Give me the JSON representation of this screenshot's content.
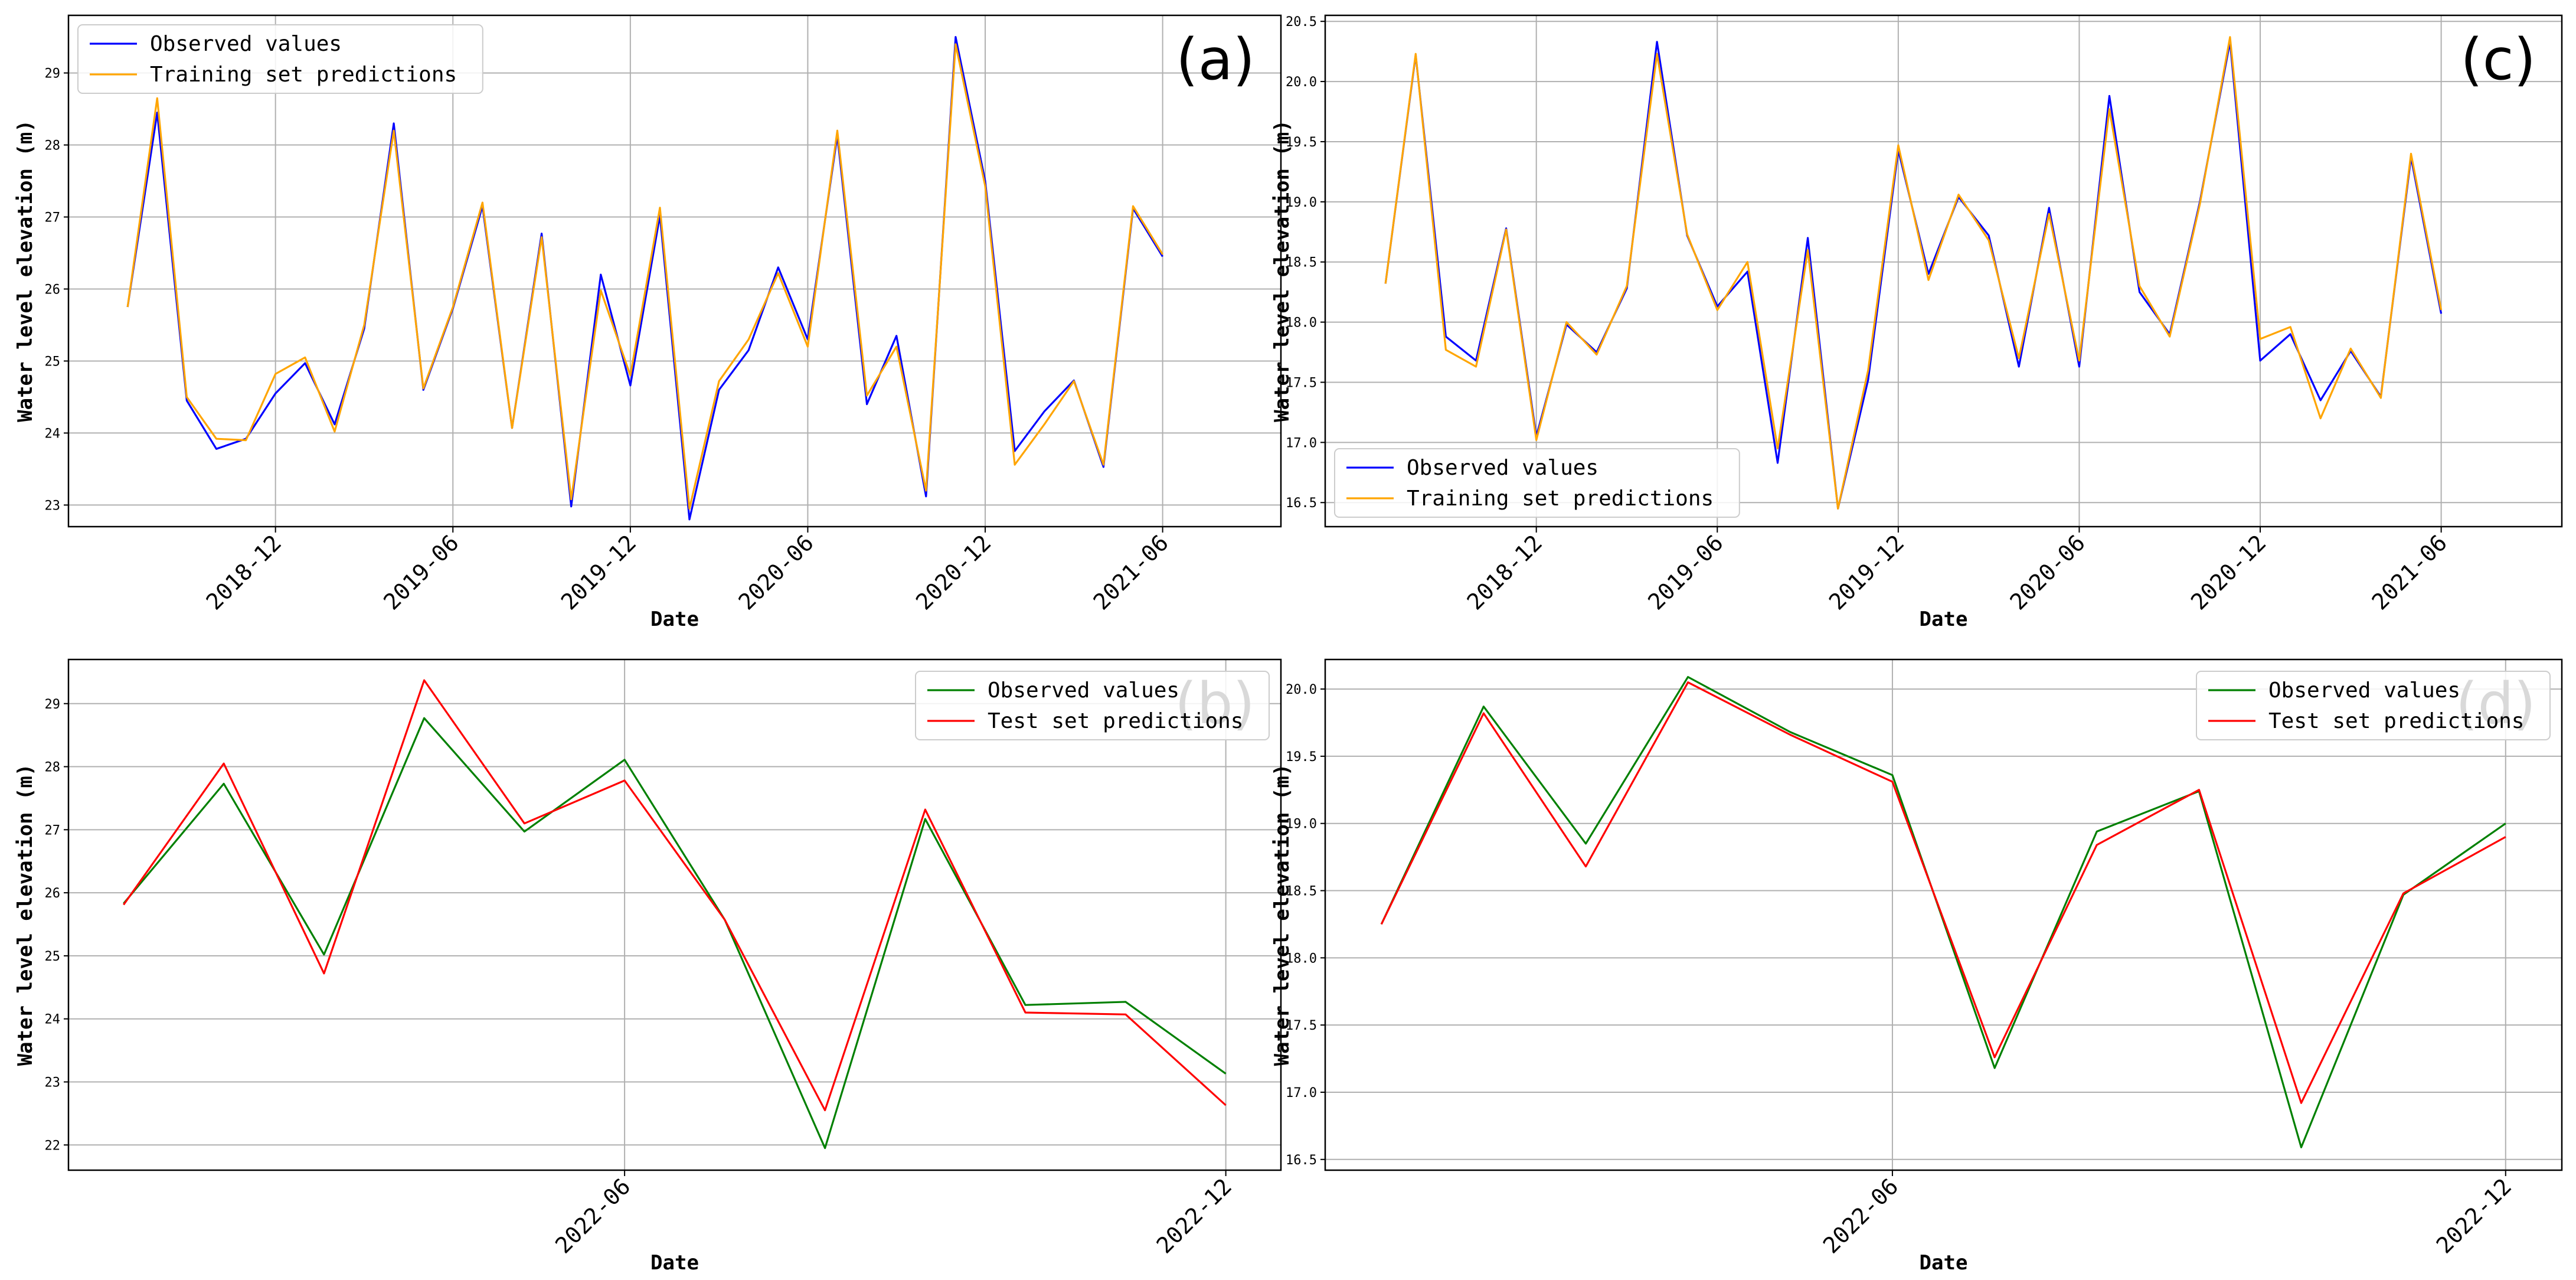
{
  "chart_data": [
    {
      "id": "a",
      "type": "line",
      "panel_label": "(a)",
      "xlabel": "Date",
      "ylabel": "Water level elevation (m)",
      "ylim": [
        22.7,
        29.8
      ],
      "yticks": [
        23,
        24,
        25,
        26,
        27,
        28,
        29
      ],
      "ytick_labels": [
        "23",
        "24",
        "25",
        "26",
        "27",
        "28",
        "29"
      ],
      "xlim": [
        -2,
        39
      ],
      "xticks": [
        5,
        11,
        17,
        23,
        29,
        35
      ],
      "xtick_labels": [
        "2018-12",
        "2019-06",
        "2019-12",
        "2020-06",
        "2020-12",
        "2021-06"
      ],
      "grid": true,
      "legend_position": "top-left",
      "series": [
        {
          "name": "Observed values",
          "color": "#0000ff",
          "x": [
            0,
            1,
            2,
            3,
            4,
            5,
            6,
            7,
            8,
            9,
            10,
            11,
            12,
            13,
            14,
            15,
            16,
            17,
            18,
            19,
            20,
            21,
            22,
            23,
            24,
            25,
            26,
            27,
            28,
            29,
            30,
            31,
            32,
            33,
            34,
            35
          ],
          "values": [
            25.75,
            28.45,
            24.45,
            23.78,
            23.92,
            24.55,
            24.97,
            24.12,
            25.45,
            28.3,
            24.6,
            25.73,
            27.15,
            24.07,
            26.77,
            22.98,
            26.2,
            24.66,
            27.02,
            22.8,
            24.6,
            25.15,
            26.3,
            25.3,
            28.13,
            24.4,
            25.35,
            23.12,
            29.5,
            27.5,
            23.75,
            24.3,
            24.73,
            23.53,
            27.12,
            26.45
          ]
        },
        {
          "name": "Training set predictions",
          "color": "#ffa500",
          "x": [
            0,
            1,
            2,
            3,
            4,
            5,
            6,
            7,
            8,
            9,
            10,
            11,
            12,
            13,
            14,
            15,
            16,
            17,
            18,
            19,
            20,
            21,
            22,
            23,
            24,
            25,
            26,
            27,
            28,
            29,
            30,
            31,
            32,
            33,
            34,
            35
          ],
          "values": [
            25.75,
            28.65,
            24.5,
            23.92,
            23.9,
            24.82,
            25.05,
            24.02,
            25.5,
            28.2,
            24.62,
            25.75,
            27.2,
            24.07,
            26.72,
            23.08,
            25.98,
            24.8,
            27.13,
            22.95,
            24.72,
            25.3,
            26.22,
            25.2,
            28.2,
            24.52,
            25.2,
            23.2,
            29.4,
            27.43,
            23.56,
            24.12,
            24.72,
            23.56,
            27.15,
            26.48
          ]
        }
      ]
    },
    {
      "id": "b",
      "type": "line",
      "panel_label": "(b)",
      "xlabel": "Date",
      "ylabel": "Water level elevation (m)",
      "ylim": [
        21.6,
        29.7
      ],
      "yticks": [
        22,
        23,
        24,
        25,
        26,
        27,
        28,
        29
      ],
      "ytick_labels": [
        "22",
        "23",
        "24",
        "25",
        "26",
        "27",
        "28",
        "29"
      ],
      "xlim": [
        -0.55,
        11.55
      ],
      "xticks": [
        5,
        11
      ],
      "xtick_labels": [
        "2022-06",
        "2022-12"
      ],
      "grid": true,
      "legend_position": "top-right",
      "series": [
        {
          "name": "Observed values",
          "color": "#008000",
          "x": [
            0,
            1,
            2,
            3,
            4,
            5,
            6,
            7,
            8,
            9,
            10,
            11
          ],
          "values": [
            25.83,
            27.73,
            25.02,
            28.77,
            26.97,
            28.11,
            25.57,
            21.95,
            27.17,
            24.22,
            24.27,
            23.13
          ]
        },
        {
          "name": "Test set predictions",
          "color": "#ff0000",
          "x": [
            0,
            1,
            2,
            3,
            4,
            5,
            6,
            7,
            8,
            9,
            10,
            11
          ],
          "values": [
            25.81,
            28.05,
            24.72,
            29.37,
            27.1,
            27.78,
            25.57,
            22.55,
            27.32,
            24.1,
            24.07,
            22.63
          ]
        }
      ]
    },
    {
      "id": "c",
      "type": "line",
      "panel_label": "(c)",
      "xlabel": "Date",
      "ylabel": "Water level elevation (m)",
      "ylim": [
        16.3,
        20.55
      ],
      "yticks": [
        16.5,
        17.0,
        17.5,
        18.0,
        18.5,
        19.0,
        19.5,
        20.0,
        20.5
      ],
      "ytick_labels": [
        "16.5",
        "17.0",
        "17.5",
        "18.0",
        "18.5",
        "19.0",
        "19.5",
        "20.0",
        "20.5"
      ],
      "xlim": [
        -2,
        39
      ],
      "xticks": [
        5,
        11,
        17,
        23,
        29,
        35
      ],
      "xtick_labels": [
        "2018-12",
        "2019-06",
        "2019-12",
        "2020-06",
        "2020-12",
        "2021-06"
      ],
      "grid": true,
      "legend_position": "bottom-left",
      "series": [
        {
          "name": "Observed values",
          "color": "#0000ff",
          "x": [
            0,
            1,
            2,
            3,
            4,
            5,
            6,
            7,
            8,
            9,
            10,
            11,
            12,
            13,
            14,
            15,
            16,
            17,
            18,
            19,
            20,
            21,
            22,
            23,
            24,
            25,
            26,
            27,
            28,
            29,
            30,
            31,
            32,
            33,
            34,
            35
          ],
          "values": [
            18.32,
            20.22,
            17.88,
            17.68,
            18.78,
            17.05,
            17.98,
            17.75,
            18.28,
            20.33,
            18.72,
            18.13,
            18.42,
            16.83,
            18.7,
            16.45,
            17.52,
            19.43,
            18.4,
            19.04,
            18.72,
            17.63,
            18.95,
            17.63,
            19.88,
            18.25,
            17.9,
            19.0,
            20.33,
            17.68,
            17.9,
            17.35,
            17.76,
            17.38,
            19.37,
            18.07
          ]
        },
        {
          "name": "Training set predictions",
          "color": "#ffa500",
          "x": [
            0,
            1,
            2,
            3,
            4,
            5,
            6,
            7,
            8,
            9,
            10,
            11,
            12,
            13,
            14,
            15,
            16,
            17,
            18,
            19,
            20,
            21,
            22,
            23,
            24,
            25,
            26,
            27,
            28,
            29,
            30,
            31,
            32,
            33,
            34,
            35
          ],
          "values": [
            18.32,
            20.23,
            17.77,
            17.63,
            18.77,
            17.02,
            18.0,
            17.73,
            18.3,
            20.23,
            18.73,
            18.1,
            18.5,
            16.95,
            18.6,
            16.45,
            17.6,
            19.47,
            18.35,
            19.06,
            18.68,
            17.7,
            18.9,
            17.68,
            19.77,
            18.3,
            17.88,
            18.98,
            20.37,
            17.86,
            17.96,
            17.2,
            17.78,
            17.37,
            19.4,
            18.1
          ]
        }
      ]
    },
    {
      "id": "d",
      "type": "line",
      "panel_label": "(d)",
      "xlabel": "Date",
      "ylabel": "Water level elevation (m)",
      "ylim": [
        16.42,
        20.22
      ],
      "yticks": [
        16.5,
        17.0,
        17.5,
        18.0,
        18.5,
        19.0,
        19.5,
        20.0
      ],
      "ytick_labels": [
        "16.5",
        "17.0",
        "17.5",
        "18.0",
        "18.5",
        "19.0",
        "19.5",
        "20.0"
      ],
      "xlim": [
        -0.55,
        11.55
      ],
      "xticks": [
        5,
        11
      ],
      "xtick_labels": [
        "2022-06",
        "2022-12"
      ],
      "grid": true,
      "legend_position": "top-right",
      "series": [
        {
          "name": "Observed values",
          "color": "#008000",
          "x": [
            0,
            1,
            2,
            3,
            4,
            5,
            6,
            7,
            8,
            9,
            10,
            11
          ],
          "values": [
            18.25,
            19.87,
            18.85,
            20.09,
            19.68,
            19.36,
            17.18,
            18.94,
            19.24,
            16.59,
            18.47,
            19.0
          ]
        },
        {
          "name": "Test set predictions",
          "color": "#ff0000",
          "x": [
            0,
            1,
            2,
            3,
            4,
            5,
            6,
            7,
            8,
            9,
            10,
            11
          ],
          "values": [
            18.25,
            19.82,
            18.68,
            20.05,
            19.66,
            19.31,
            17.26,
            18.84,
            19.25,
            16.92,
            18.48,
            18.9
          ]
        }
      ]
    }
  ]
}
